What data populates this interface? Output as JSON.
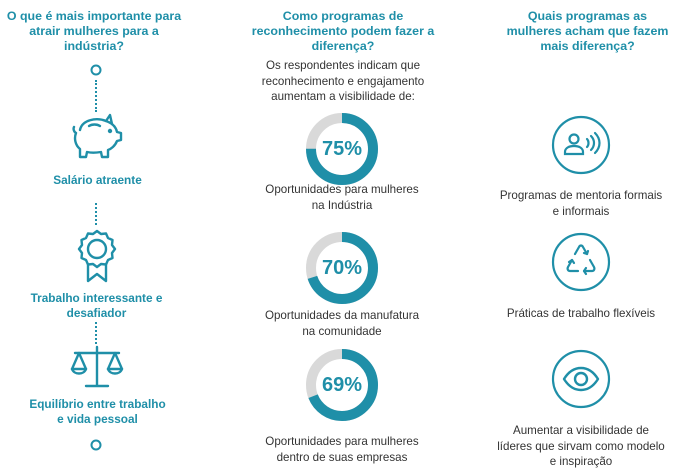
{
  "left_column": {
    "heading": "O que é mais importante para atrair mulheres para a indústria?",
    "items": [
      {
        "label": "Salário atraente",
        "icon": "piggy-bank-icon"
      },
      {
        "label": "Trabalho interessante e desafiador",
        "icon": "award-ribbon-icon"
      },
      {
        "label": "Equilíbrio entre trabalho e vida pessoal",
        "icon": "balance-scale-icon"
      }
    ]
  },
  "middle_column": {
    "heading": "Como programas de reconhecimento podem fazer a diferença?",
    "intro": "Os respondentes indicam que reconhecimento e engajamento aumentam a visibilidade de:",
    "items": [
      {
        "percent_label": "75%",
        "value": 75,
        "caption": "Oportunidades para mulheres na Indústria"
      },
      {
        "percent_label": "70%",
        "value": 70,
        "caption": "Oportunidades da manufatura na comunidade"
      },
      {
        "percent_label": "69%",
        "value": 69,
        "caption": "Oportunidades para mulheres dentro de suas empresas"
      }
    ]
  },
  "right_column": {
    "heading": "Quais programas as mulheres acham que fazem mais diferença?",
    "items": [
      {
        "label": "Programas de mentoria formais e informais",
        "icon": "mentor-speaking-icon"
      },
      {
        "label": "Práticas de trabalho flexíveis",
        "icon": "recycle-arrows-icon"
      },
      {
        "label": "Aumentar a visibilidade de líderes que sirvam como modelo e inspiração",
        "icon": "eye-icon"
      }
    ]
  },
  "colors": {
    "accent": "#1f8fa8",
    "donut_track": "#d9d9d9",
    "text": "#333333"
  }
}
